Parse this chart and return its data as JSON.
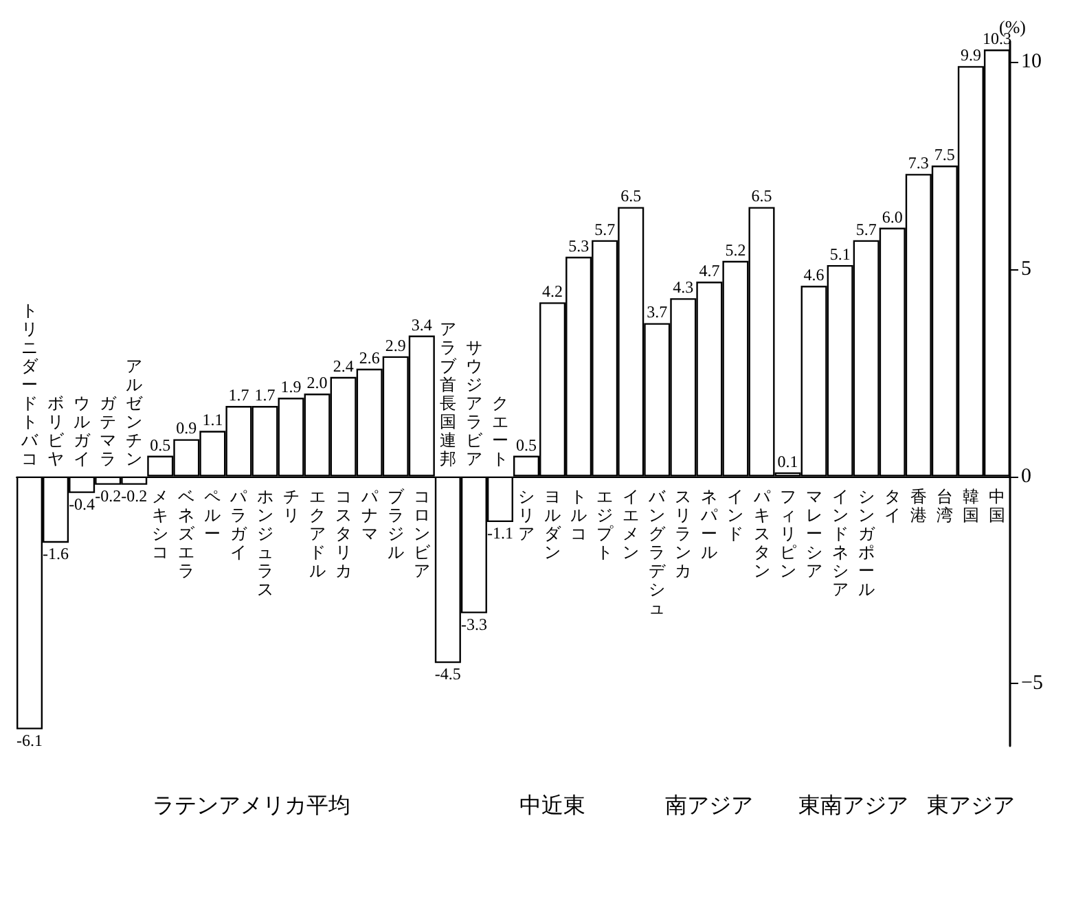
{
  "chart_data": {
    "type": "bar",
    "ylabel": "(%)",
    "color": "#ffffff",
    "categories": [
      "トリニダードトバコ",
      "ボリビヤ",
      "ウルガイ",
      "ガテマラ",
      "アルゼンチン",
      "メキシコ",
      "ベネズエラ",
      "ペルー",
      "パラガイ",
      "ホンジュラス",
      "チリ",
      "エクアドル",
      "コスタリカ",
      "パナマ",
      "ブラジル",
      "コロンビア",
      "アラブ首長国連邦",
      "サウジアラビア",
      "クエート",
      "シリア",
      "ヨルダン",
      "トルコ",
      "エジプト",
      "イエメン",
      "バングラデシュ",
      "スリランカ",
      "ネパール",
      "インド",
      "パキスタン",
      "フィリピン",
      "マレーシア",
      "インドネシア",
      "シンガポール",
      "タイ",
      "香港",
      "台湾",
      "韓国",
      "中国"
    ],
    "values": [
      -6.1,
      -1.6,
      -0.4,
      -0.2,
      -0.2,
      0.5,
      0.9,
      1.1,
      1.7,
      1.7,
      1.9,
      2.0,
      2.4,
      2.6,
      2.9,
      3.4,
      -4.5,
      -3.3,
      -1.1,
      0.5,
      4.2,
      5.3,
      5.7,
      6.5,
      3.7,
      4.3,
      4.7,
      5.2,
      6.5,
      0.1,
      4.6,
      5.1,
      5.7,
      6.0,
      7.3,
      7.5,
      9.9,
      10.3
    ],
    "value_labels": [
      "-6.1",
      "-1.6",
      "-0.4",
      "-0.2",
      "-0.2",
      "0.5",
      "0.9",
      "1.1",
      "1.7",
      "1.7",
      "1.9",
      "2.0",
      "2.4",
      "2.6",
      "2.9",
      "3.4",
      "-4.5",
      "-3.3",
      "-1.1",
      "0.5",
      "4.2",
      "5.3",
      "5.7",
      "6.5",
      "3.7",
      "4.3",
      "4.7",
      "5.2",
      "6.5",
      "0.1",
      "4.6",
      "5.1",
      "5.7",
      "6.0",
      "7.3",
      "7.5",
      "9.9",
      "10.3"
    ],
    "ylim": [
      -6.5,
      10.5
    ],
    "yticks": [
      -5,
      0,
      5,
      10
    ],
    "annotations": [
      "ラテンアメリカ平均",
      "中近東",
      "南アジア",
      "東南アジア",
      "東アジア"
    ]
  }
}
